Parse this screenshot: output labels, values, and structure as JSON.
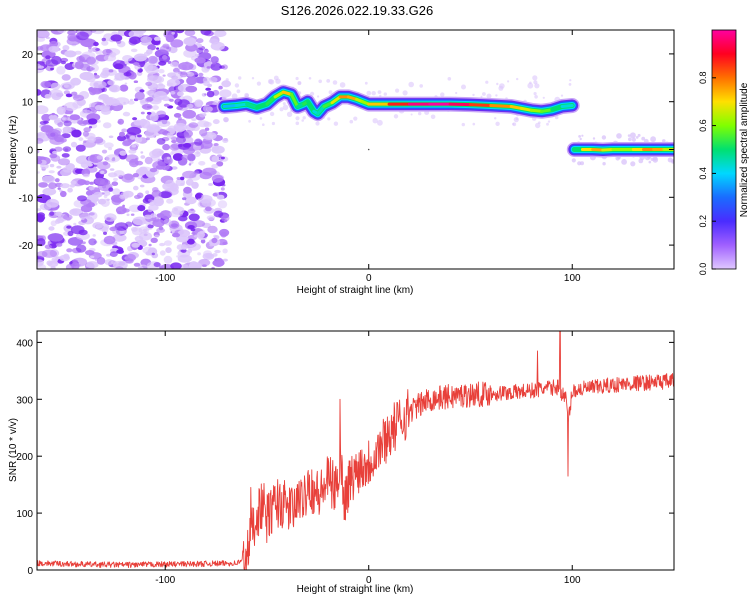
{
  "title": "S126.2026.022.19.33.G26",
  "colors": {
    "snr_line": "#e8403a",
    "axis": "#000000",
    "background": "#ffffff",
    "noise": "#8a3cf0",
    "colormap": [
      "#e0c8ff",
      "#a060ff",
      "#4a2cff",
      "#1a6cff",
      "#00d8ff",
      "#00e070",
      "#80ff00",
      "#ffe000",
      "#ff7000",
      "#ff0020",
      "#ff00a0"
    ]
  },
  "chart_data": [
    {
      "type": "heatmap",
      "name": "spectrogram",
      "xlabel": "Height of straight line (km)",
      "ylabel": "Frequency (Hz)",
      "xlim": [
        -163,
        150
      ],
      "ylim": [
        -25,
        25
      ],
      "xticks": [
        -100,
        0,
        100
      ],
      "yticks": [
        -20,
        -10,
        0,
        10,
        20
      ],
      "noise_region_x": [
        -163,
        -70
      ],
      "tracks": [
        {
          "label": "upper track",
          "x": [
            -71,
            -65,
            -60,
            -55,
            -50,
            -46,
            -42,
            -38,
            -35,
            -32,
            -30,
            -27,
            -25,
            -22,
            -18,
            -14,
            -10,
            -6,
            -3,
            0,
            10,
            20,
            30,
            40,
            50,
            60,
            70,
            75,
            80,
            85,
            90,
            95,
            100
          ],
          "y": [
            9,
            9.2,
            9.5,
            8.8,
            9.5,
            11,
            12,
            11.5,
            9,
            9.5,
            10,
            8,
            7.5,
            9,
            9.8,
            11,
            11,
            10.5,
            10,
            9.5,
            9.5,
            9.5,
            9.5,
            9.5,
            9.4,
            9.2,
            9,
            8.6,
            8.2,
            8,
            8.3,
            9,
            9.2
          ],
          "amplitude": [
            0.35,
            0.4,
            0.45,
            0.5,
            0.5,
            0.55,
            0.75,
            0.7,
            0.45,
            0.5,
            0.55,
            0.45,
            0.4,
            0.5,
            0.6,
            0.75,
            0.8,
            0.7,
            0.6,
            0.65,
            0.8,
            0.95,
            1.0,
            1.0,
            0.9,
            0.8,
            0.75,
            0.7,
            0.65,
            0.6,
            0.55,
            0.45,
            0.4
          ]
        },
        {
          "label": "lower track",
          "x": [
            101,
            105,
            110,
            115,
            120,
            125,
            130,
            135,
            140,
            145,
            150
          ],
          "y": [
            0,
            0,
            0,
            -0.1,
            0,
            0,
            0,
            0,
            0,
            0,
            0
          ],
          "amplitude": [
            0.4,
            0.6,
            0.8,
            0.7,
            0.65,
            0.6,
            0.65,
            0.75,
            0.8,
            0.7,
            0.6
          ]
        }
      ]
    },
    {
      "type": "line",
      "name": "snr",
      "xlabel": "Height of straight line (km)",
      "ylabel": "SNR (10 * v/v)",
      "xlim": [
        -163,
        150
      ],
      "ylim": [
        0,
        420
      ],
      "xticks": [
        -100,
        0,
        100
      ],
      "yticks": [
        0,
        100,
        200,
        300,
        400
      ],
      "series": [
        {
          "name": "SNR",
          "x": [
            -163,
            -140,
            -120,
            -100,
            -80,
            -65,
            -60,
            -58,
            -55,
            -52,
            -50,
            -45,
            -40,
            -35,
            -32,
            -30,
            -27,
            -24,
            -20,
            -16,
            -14,
            -12,
            -10,
            -5,
            0,
            5,
            10,
            15,
            20,
            30,
            40,
            50,
            60,
            70,
            80,
            85,
            90,
            93,
            95,
            97,
            98,
            100,
            105,
            110,
            120,
            130,
            140,
            150
          ],
          "y": [
            12,
            10,
            9,
            10,
            11,
            12,
            20,
            60,
            100,
            115,
            90,
            120,
            110,
            105,
            130,
            150,
            140,
            130,
            160,
            140,
            200,
            120,
            150,
            180,
            190,
            215,
            240,
            260,
            280,
            300,
            305,
            308,
            310,
            312,
            315,
            318,
            320,
            322,
            310,
            300,
            260,
            315,
            318,
            320,
            325,
            328,
            330,
            332
          ],
          "spikes": [
            {
              "x": -58,
              "y": 145
            },
            {
              "x": -45,
              "y": 130
            },
            {
              "x": -35,
              "y": 150
            },
            {
              "x": -30,
              "y": 170
            },
            {
              "x": -14,
              "y": 300
            },
            {
              "x": 83,
              "y": 385
            },
            {
              "x": 94,
              "y": 420
            },
            {
              "x": 98,
              "y": 165
            }
          ]
        }
      ]
    }
  ],
  "colorbar": {
    "label": "Normalized spectral amplitude",
    "ticks": [
      "0.0",
      "0.2",
      "0.4",
      "0.6",
      "0.8"
    ]
  }
}
